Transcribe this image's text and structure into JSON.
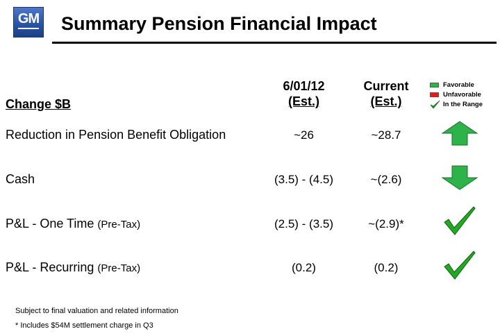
{
  "header": {
    "logo_text": "GM",
    "title": "Summary Pension Financial Impact"
  },
  "table": {
    "change_header": "Change $B",
    "columns": [
      {
        "line1": "6/01/12",
        "line2": "(Est.)"
      },
      {
        "line1": "Current",
        "line2": "(Est.)"
      }
    ],
    "rows": [
      {
        "label": "Reduction in Pension Benefit Obligation",
        "label_suffix": "",
        "col1": "~26",
        "col2": "~28.7",
        "indicator": "up-arrow"
      },
      {
        "label": "Cash",
        "label_suffix": "",
        "col1": "(3.5) - (4.5)",
        "col2": "~(2.6)",
        "indicator": "down-arrow"
      },
      {
        "label": "P&L - One Time ",
        "label_suffix": "(Pre-Tax)",
        "col1": "(2.5) - (3.5)",
        "col2": "~(2.9)*",
        "indicator": "checkmark"
      },
      {
        "label": "P&L - Recurring ",
        "label_suffix": "(Pre-Tax)",
        "col1": "(0.2)",
        "col2": "(0.2)",
        "indicator": "checkmark"
      }
    ]
  },
  "legend": {
    "favorable": "Favorable",
    "unfavorable": "Unfavorable",
    "in_range": "In the Range",
    "colors": {
      "favorable": "#2db34a",
      "unfavorable": "#e31b1b",
      "in_range": "#22aa22"
    }
  },
  "footnotes": {
    "line1": "Subject to final valuation and related information",
    "line2": "* Includes $54M settlement charge in Q3"
  }
}
